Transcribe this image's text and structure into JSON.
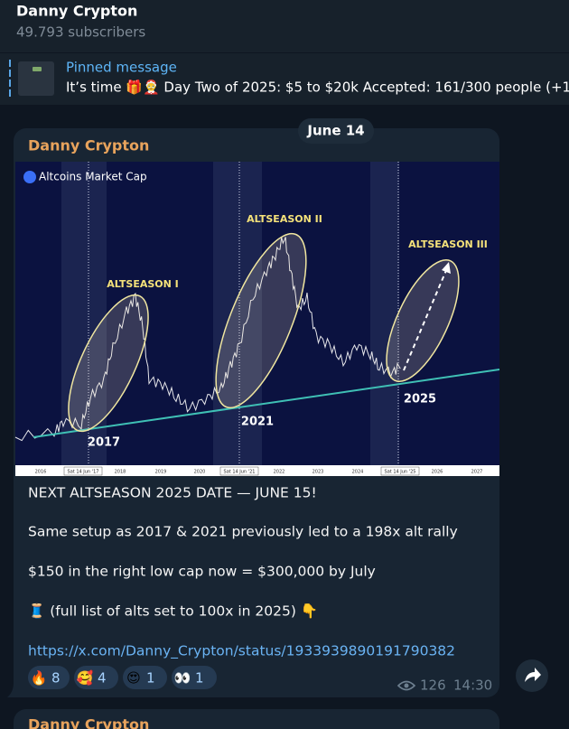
{
  "header": {
    "title": "Danny Crypton",
    "subtitle": "49.793 subscribers"
  },
  "pinned": {
    "label": "Pinned message",
    "text": "It’s time 🎁🤶  Day Two of 2025: $5 to $20k  Accepted: 161/300 people (+1"
  },
  "date": "June 14",
  "message": {
    "sender": "Danny Crypton",
    "image": {
      "title": "Altcoins Market Cap",
      "annotations": [
        "ALTSEASON I",
        "ALTSEASON II",
        "ALTSEASON III"
      ],
      "years": [
        "2017",
        "2021",
        "2025"
      ],
      "x_labels": [
        "2016",
        "2018",
        "2019",
        "2020",
        "2022",
        "2023",
        "2024",
        "2026",
        "2027"
      ],
      "date_flags": [
        "Sat 14 Jun '17",
        "Sat 14 Jun '21",
        "Sat 14 Jun '25"
      ]
    },
    "lines": [
      "NEXT ALTSEASON 2025 DATE — JUNE 15!",
      "Same setup as 2017 & 2021 previously led to a 198x alt rally",
      "$150 in the right low cap now = $300,000 by July",
      "🧵 (full list of alts set to 100x in 2025) 👇"
    ],
    "link": "https://x.com/Danny_Crypton/status/1933939890191790382",
    "reactions": [
      {
        "emoji": "🔥",
        "count": 8
      },
      {
        "emoji": "🥰",
        "count": 4
      },
      {
        "emoji": "😍",
        "count": 1
      },
      {
        "emoji": "👀",
        "count": 1
      }
    ],
    "views": 126,
    "time": "14:30"
  },
  "next_message": {
    "sender": "Danny Crypton"
  }
}
